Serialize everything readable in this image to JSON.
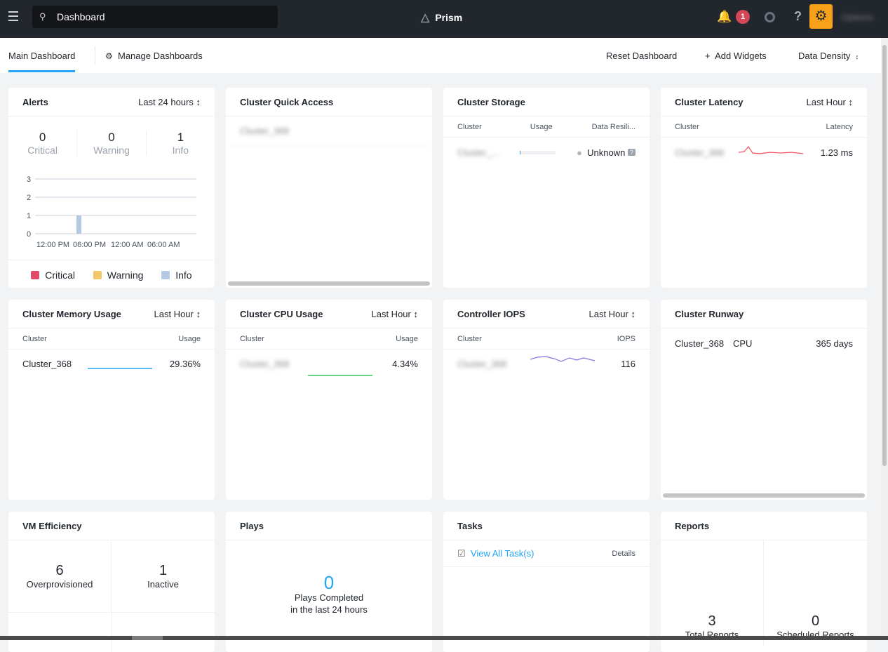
{
  "topbar": {
    "search_value": "Dashboard",
    "brand": "Prism",
    "alert_count": "1",
    "user": "Options"
  },
  "subnav": {
    "main": "Main Dashboard",
    "manage": "Manage Dashboards",
    "reset": "Reset Dashboard",
    "add": "Add Widgets",
    "density": "Data Density"
  },
  "alerts": {
    "title": "Alerts",
    "range": "Last 24 hours",
    "counts": [
      {
        "value": "0",
        "label": "Critical"
      },
      {
        "value": "0",
        "label": "Warning"
      },
      {
        "value": "1",
        "label": "Info"
      }
    ],
    "chart_data": {
      "type": "bar",
      "yticks": [
        "3",
        "2",
        "1",
        "0"
      ],
      "xticks": [
        "12:00 PM",
        "06:00 PM",
        "12:00 AM",
        "06:00 AM"
      ],
      "ylim": [
        0,
        3
      ],
      "bars": [
        {
          "series": "Info",
          "position": "between 12:00 PM and 06:00 PM",
          "value": 1
        }
      ]
    },
    "legend": [
      {
        "label": "Critical",
        "color": "#e04b6a"
      },
      {
        "label": "Warning",
        "color": "#f2c76a"
      },
      {
        "label": "Info",
        "color": "#b4c9e2"
      }
    ]
  },
  "quick": {
    "title": "Cluster Quick Access",
    "cluster": "Cluster_368"
  },
  "storage": {
    "title": "Cluster Storage",
    "cols": [
      "Cluster",
      "Usage",
      "Data Resili..."
    ],
    "cluster": "Cluster_...",
    "usage_percent": 1,
    "resilience": "Unknown"
  },
  "latency": {
    "title": "Cluster Latency",
    "range": "Last Hour",
    "cols": [
      "Cluster",
      "Latency"
    ],
    "cluster": "Cluster_368",
    "value": "1.23 ms",
    "color": "#f0525e"
  },
  "memory": {
    "title": "Cluster Memory Usage",
    "range": "Last Hour",
    "cols": [
      "Cluster",
      "Usage"
    ],
    "cluster": "Cluster_368",
    "value": "29.36%",
    "color": "#22a5f7"
  },
  "cpu": {
    "title": "Cluster CPU Usage",
    "range": "Last Hour",
    "cols": [
      "Cluster",
      "Usage"
    ],
    "cluster": "Cluster_368",
    "value": "4.34%",
    "color": "#34c759"
  },
  "iops": {
    "title": "Controller IOPS",
    "range": "Last Hour",
    "cols": [
      "Cluster",
      "IOPS"
    ],
    "cluster": "Cluster_368",
    "value": "116",
    "color": "#8b6ee8"
  },
  "runway": {
    "title": "Cluster Runway",
    "cluster": "Cluster_368",
    "resource": "CPU",
    "value": "365 days"
  },
  "vm": {
    "title": "VM Efficiency",
    "items": [
      {
        "value": "6",
        "label": "Overprovisioned"
      },
      {
        "value": "1",
        "label": "Inactive"
      }
    ]
  },
  "plays": {
    "title": "Plays",
    "value": "0",
    "line1": "Plays Completed",
    "line2": "in the last 24 hours"
  },
  "tasks": {
    "title": "Tasks",
    "link": "View All Task(s)",
    "details": "Details"
  },
  "reports": {
    "title": "Reports",
    "items": [
      {
        "value": "3",
        "label": "Total Reports"
      },
      {
        "value": "0",
        "label": "Scheduled Reports"
      }
    ]
  }
}
